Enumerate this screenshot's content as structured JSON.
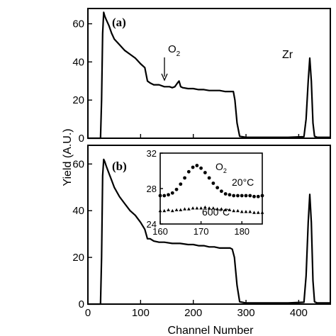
{
  "chart_data": [
    {
      "type": "line",
      "panel_label": "(a)",
      "xlabel": "Channel Number",
      "ylabel": "Yield (A.U.)",
      "xlim": [
        0,
        460
      ],
      "ylim": [
        0,
        68
      ],
      "xticks": [
        0,
        100,
        200,
        300,
        400
      ],
      "yticks": [
        0,
        20,
        40,
        60
      ],
      "annotations": [
        {
          "text": "O",
          "subscript": "2",
          "x": 172,
          "y": 41,
          "arrow_to": [
            172,
            29
          ]
        },
        {
          "text": "Zr",
          "x": 410,
          "y": 42
        }
      ],
      "series": [
        {
          "x": [
            0,
            24,
            26,
            28,
            30,
            32,
            35,
            40,
            45,
            50,
            60,
            70,
            80,
            90,
            100,
            108,
            113,
            118,
            125,
            135,
            145,
            155,
            160,
            165,
            170,
            173,
            176,
            180,
            190,
            200,
            210,
            220,
            230,
            240,
            250,
            260,
            270,
            276,
            279,
            283,
            288,
            300,
            320,
            350,
            380,
            410,
            414,
            418,
            421,
            424,
            427,
            430,
            435,
            450,
            460
          ],
          "y": [
            0,
            0,
            20,
            55,
            66,
            64,
            62,
            59,
            55,
            52,
            49,
            46,
            44,
            42,
            39,
            37,
            30,
            29,
            28,
            28,
            27,
            27,
            26.5,
            27,
            29,
            30,
            27,
            26.5,
            26,
            26,
            25.5,
            25.5,
            25,
            25,
            25,
            24.5,
            24.5,
            24.5,
            20,
            8,
            1,
            0.5,
            0.5,
            0.5,
            0.5,
            0.8,
            10,
            30,
            42,
            30,
            8,
            1,
            0.5,
            0.5,
            0.5
          ]
        }
      ]
    },
    {
      "type": "line",
      "panel_label": "(b)",
      "xlabel": "Channel Number",
      "ylabel": "Yield (A.U.)",
      "xlim": [
        0,
        460
      ],
      "ylim": [
        0,
        68
      ],
      "xticks": [
        0,
        100,
        200,
        300,
        400
      ],
      "yticks": [
        0,
        20,
        40,
        60
      ],
      "series": [
        {
          "x": [
            0,
            24,
            26,
            28,
            30,
            32,
            35,
            40,
            45,
            50,
            60,
            70,
            80,
            90,
            100,
            108,
            113,
            118,
            125,
            135,
            145,
            160,
            175,
            190,
            200,
            210,
            220,
            230,
            240,
            250,
            260,
            270,
            274,
            278,
            283,
            288,
            300,
            320,
            350,
            380,
            410,
            414,
            418,
            421,
            424,
            427,
            430,
            435,
            450,
            460
          ],
          "y": [
            0,
            0,
            20,
            55,
            62,
            61,
            59,
            56,
            53,
            50,
            46,
            43,
            40,
            38,
            35,
            32,
            28,
            28,
            27,
            26.5,
            26.5,
            26,
            26,
            25.5,
            25.5,
            25,
            25,
            24.5,
            24.5,
            24,
            24,
            24,
            23.5,
            20,
            8,
            1,
            0.5,
            0.5,
            0.5,
            0.5,
            0.8,
            12,
            35,
            47,
            35,
            10,
            1,
            0.5,
            0.5,
            0.5
          ]
        }
      ]
    },
    {
      "type": "scatter",
      "role": "inset",
      "xlim": [
        160,
        185
      ],
      "ylim": [
        24,
        32
      ],
      "xticks": [
        160,
        170,
        180
      ],
      "yticks": [
        24,
        28,
        32
      ],
      "annotations": [
        {
          "text": "O",
          "subscript": "2"
        }
      ],
      "series": [
        {
          "name": "20°C",
          "marker": "circle",
          "x": [
            160,
            161,
            162,
            163,
            164,
            165,
            166,
            167,
            168,
            169,
            170,
            171,
            172,
            173,
            174,
            175,
            176,
            177,
            178,
            179,
            180,
            181,
            182,
            183,
            184,
            185
          ],
          "y": [
            27.2,
            27.2,
            27.3,
            27.5,
            27.9,
            28.5,
            29.2,
            29.9,
            30.4,
            30.6,
            30.3,
            29.8,
            29.2,
            28.6,
            28.1,
            27.7,
            27.4,
            27.3,
            27.2,
            27.2,
            27.2,
            27.2,
            27.2,
            27.1,
            27.1,
            27.2
          ]
        },
        {
          "name": "600°C",
          "marker": "triangle",
          "x": [
            160,
            161,
            162,
            163,
            164,
            165,
            166,
            167,
            168,
            169,
            170,
            171,
            172,
            173,
            174,
            175,
            176,
            177,
            178,
            179,
            180,
            181,
            182,
            183,
            184,
            185
          ],
          "y": [
            25.5,
            25.5,
            25.6,
            25.5,
            25.6,
            25.6,
            25.7,
            25.7,
            25.8,
            25.8,
            25.8,
            25.9,
            25.8,
            25.8,
            25.7,
            25.7,
            25.6,
            25.6,
            25.5,
            25.5,
            25.4,
            25.4,
            25.4,
            25.3,
            25.3,
            25.3
          ]
        }
      ]
    }
  ]
}
